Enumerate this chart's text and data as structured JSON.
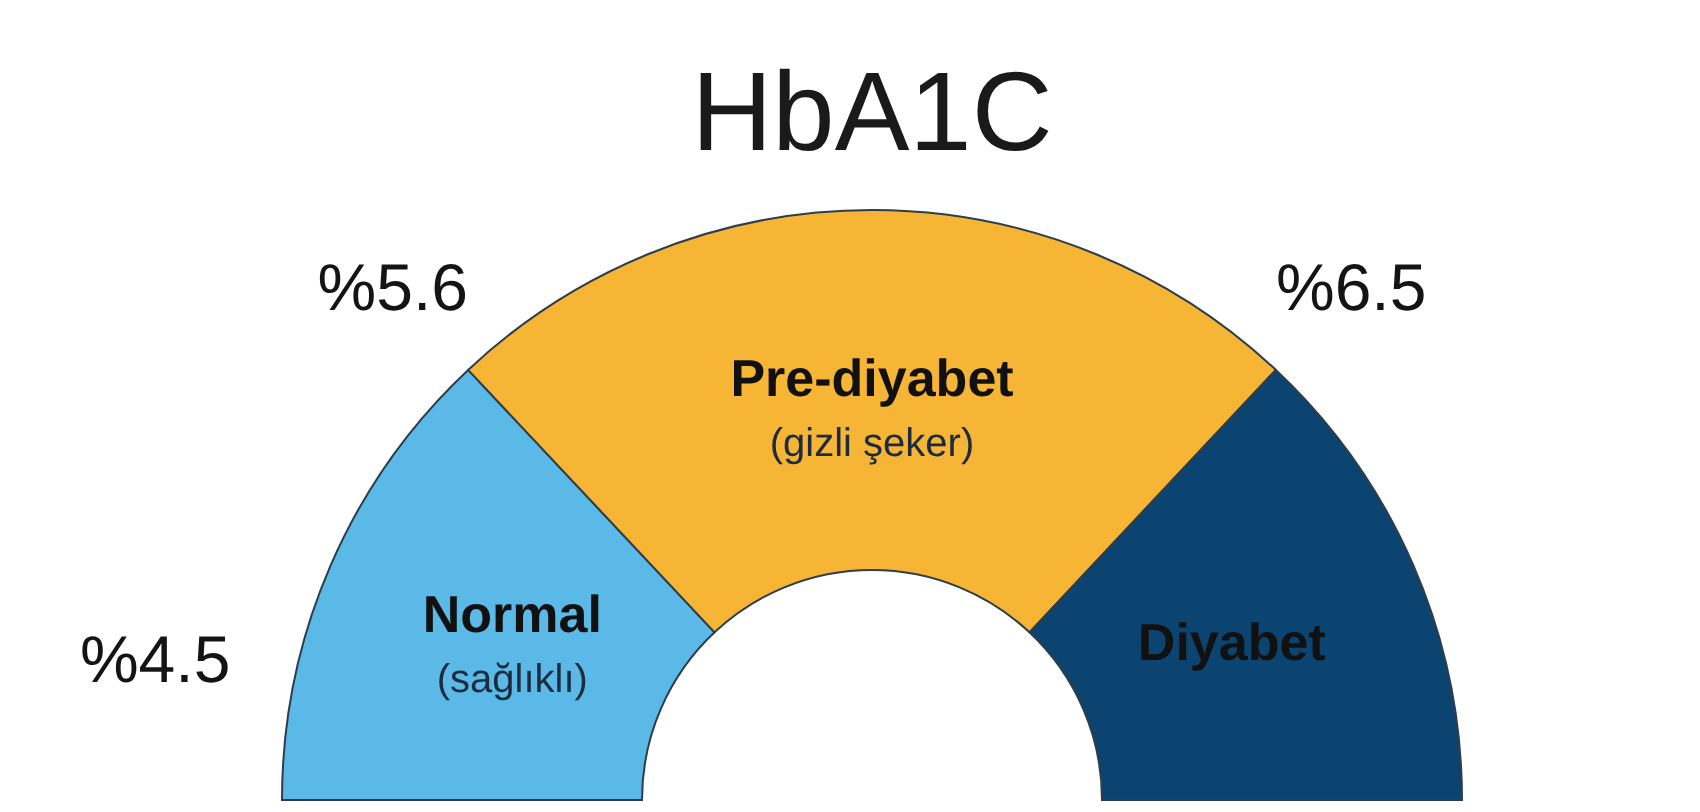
{
  "chart_data": {
    "type": "donut",
    "title": "HbA1C",
    "categories": [
      "Normal\n(sağlıklı)",
      "Pre-diyabet\n(gizli şeker)",
      "Diyabet"
    ],
    "values": [
      26,
      48,
      26
    ],
    "colors": [
      "#5ab9e6",
      "#f6b535",
      "#0c4471"
    ],
    "annotations": [
      "%4.5",
      "%5.6",
      "%6.5"
    ]
  }
}
